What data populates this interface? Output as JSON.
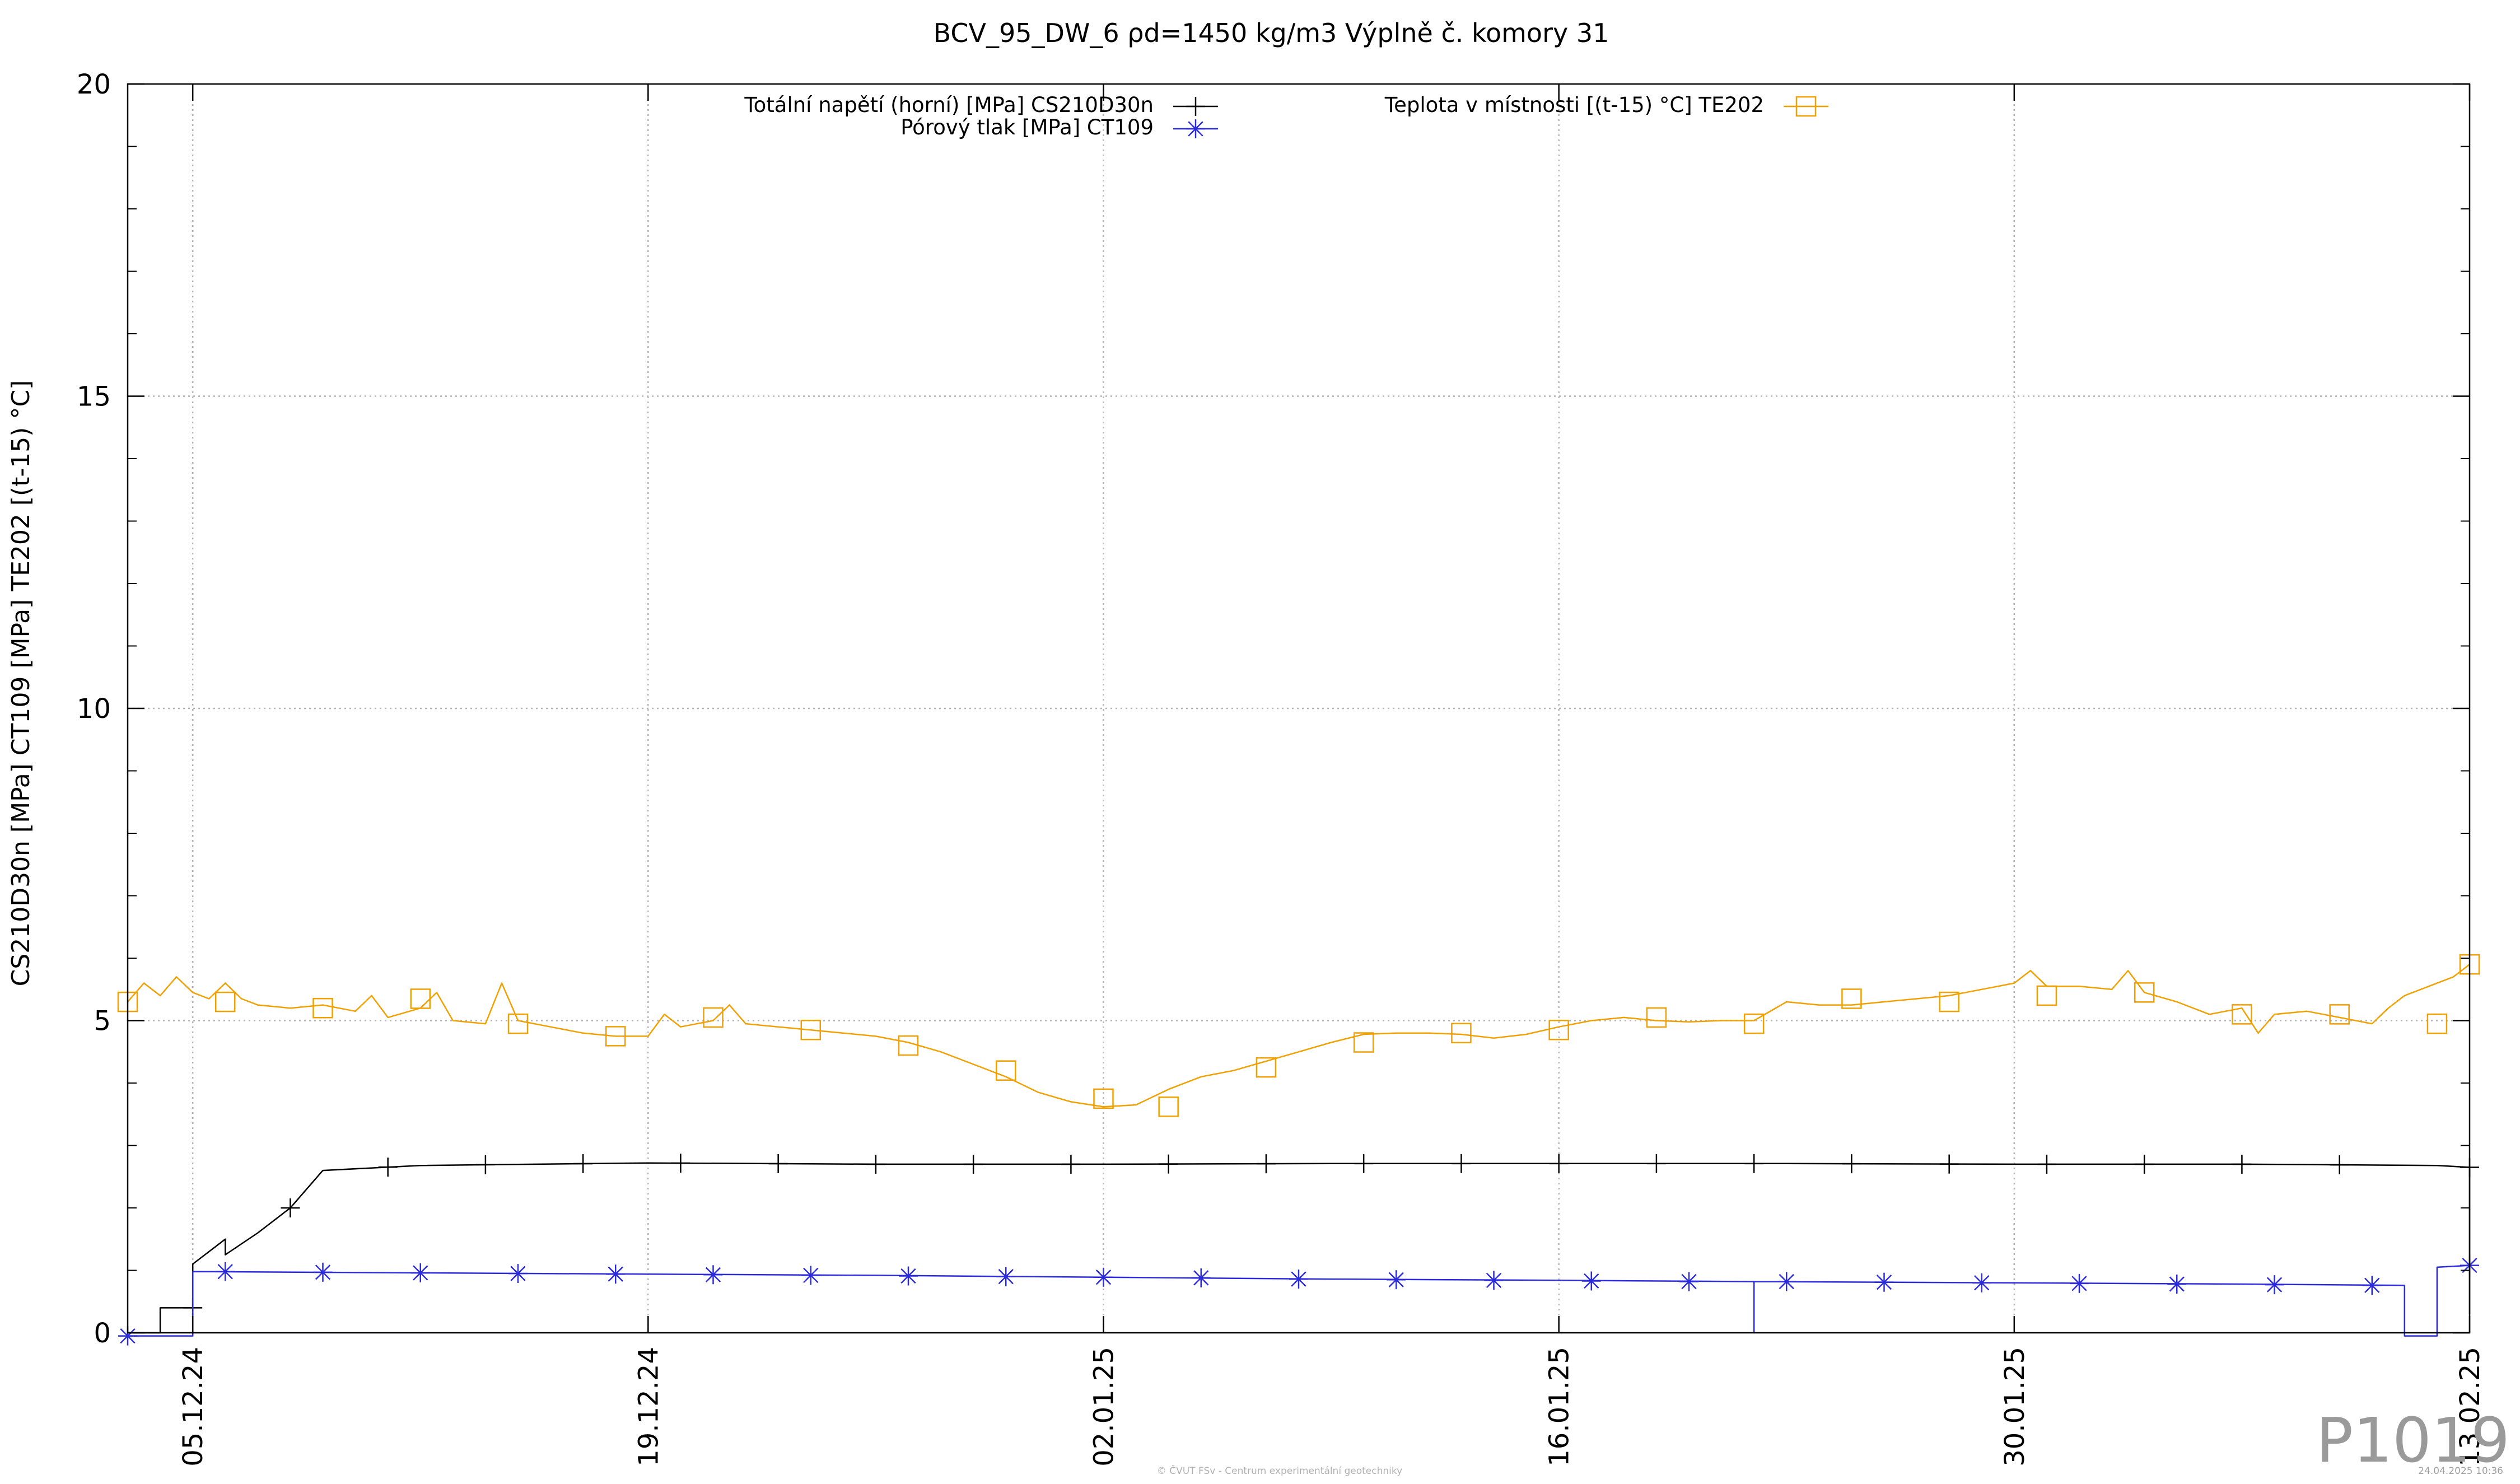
{
  "chart_data": {
    "type": "line",
    "title": "BCV_95_DW_6 ρd=1450 kg/m3 Výplně č. komory 31",
    "ylabel": "CS210D30n [MPa] CT109 [MPa] TE202 [(t-15) °C]",
    "xlabel": "",
    "ylim": [
      0,
      20
    ],
    "yticks": [
      "0",
      "5",
      "10",
      "15",
      "20"
    ],
    "xlim": [
      "2024-12-03",
      "2025-02-13"
    ],
    "xticks": [
      {
        "date": "2024-12-05",
        "label": "05.12.24"
      },
      {
        "date": "2024-12-19",
        "label": "19.12.24"
      },
      {
        "date": "2025-01-02",
        "label": "02.01.25"
      },
      {
        "date": "2025-01-16",
        "label": "16.01.25"
      },
      {
        "date": "2025-01-30",
        "label": "30.01.25"
      },
      {
        "date": "2025-02-13",
        "label": "13.02.25"
      }
    ],
    "grid": true,
    "legend_position": "top",
    "series": [
      {
        "name": "Totální napětí (horní) [MPa] CS210D30n",
        "color": "#000000",
        "marker": "plus",
        "points": [
          [
            "2024-12-03",
            0.0
          ],
          [
            "2024-12-04",
            0.0
          ],
          [
            "2024-12-04",
            0.4
          ],
          [
            "2024-12-05",
            0.4
          ],
          [
            "2024-12-05",
            1.1
          ],
          [
            "2024-12-06",
            1.5
          ],
          [
            "2024-12-06",
            1.25
          ],
          [
            "2024-12-07",
            1.6
          ],
          [
            "2024-12-08",
            2.0
          ],
          [
            "2024-12-09",
            2.6
          ],
          [
            "2024-12-12",
            2.68
          ],
          [
            "2024-12-19",
            2.72
          ],
          [
            "2024-12-26",
            2.7
          ],
          [
            "2025-01-02",
            2.7
          ],
          [
            "2025-01-09",
            2.71
          ],
          [
            "2025-01-16",
            2.71
          ],
          [
            "2025-01-23",
            2.71
          ],
          [
            "2025-01-30",
            2.7
          ],
          [
            "2025-02-06",
            2.7
          ],
          [
            "2025-02-12",
            2.68
          ],
          [
            "2025-02-13",
            2.65
          ],
          [
            "2025-02-13",
            0.3
          ]
        ],
        "markers": [
          "2024-12-05",
          "2024-12-08",
          "2024-12-11",
          "2024-12-14",
          "2024-12-17",
          "2024-12-20",
          "2024-12-23",
          "2024-12-26",
          "2024-12-29",
          "2025-01-01",
          "2025-01-04",
          "2025-01-07",
          "2025-01-10",
          "2025-01-13",
          "2025-01-16",
          "2025-01-19",
          "2025-01-22",
          "2025-01-25",
          "2025-01-28",
          "2025-01-31",
          "2025-02-03",
          "2025-02-06",
          "2025-02-09",
          "2025-02-13"
        ]
      },
      {
        "name": "Pórový tlak [MPa] CT109",
        "color": "#2b2bdc",
        "marker": "star",
        "points": [
          [
            "2024-12-03",
            -0.05
          ],
          [
            "2024-12-05",
            -0.05
          ],
          [
            "2024-12-05",
            0.98
          ],
          [
            "2024-12-12",
            0.96
          ],
          [
            "2024-12-19",
            0.94
          ],
          [
            "2024-12-26",
            0.92
          ],
          [
            "2025-01-02",
            0.89
          ],
          [
            "2025-01-09",
            0.86
          ],
          [
            "2025-01-16",
            0.84
          ],
          [
            "2025-01-22",
            0.82
          ],
          [
            "2025-01-22",
            0.0
          ],
          [
            "2025-01-22",
            0.82
          ],
          [
            "2025-01-30",
            0.8
          ],
          [
            "2025-02-06",
            0.78
          ],
          [
            "2025-02-11",
            0.76
          ],
          [
            "2025-02-11",
            -0.05
          ],
          [
            "2025-02-12",
            -0.05
          ],
          [
            "2025-02-12",
            1.05
          ],
          [
            "2025-02-13",
            1.08
          ]
        ],
        "markers": [
          [
            "2024-12-03",
            -0.05
          ],
          [
            "2024-12-06",
            0.98
          ],
          [
            "2024-12-09",
            0.97
          ],
          [
            "2024-12-12",
            0.96
          ],
          [
            "2024-12-15",
            0.95
          ],
          [
            "2024-12-18",
            0.94
          ],
          [
            "2024-12-21",
            0.93
          ],
          [
            "2024-12-24",
            0.92
          ],
          [
            "2024-12-27",
            0.91
          ],
          [
            "2024-12-30",
            0.9
          ],
          [
            "2025-01-02",
            0.89
          ],
          [
            "2025-01-05",
            0.88
          ],
          [
            "2025-01-08",
            0.86
          ],
          [
            "2025-01-11",
            0.85
          ],
          [
            "2025-01-14",
            0.84
          ],
          [
            "2025-01-17",
            0.83
          ],
          [
            "2025-01-20",
            0.82
          ],
          [
            "2025-01-23",
            0.82
          ],
          [
            "2025-01-26",
            0.81
          ],
          [
            "2025-01-29",
            0.8
          ],
          [
            "2025-02-01",
            0.79
          ],
          [
            "2025-02-04",
            0.78
          ],
          [
            "2025-02-07",
            0.77
          ],
          [
            "2025-02-10",
            0.76
          ],
          [
            "2025-02-13",
            1.08
          ]
        ]
      },
      {
        "name": "Teplota v místnosti [(t-15) °C] TE202",
        "color": "#f0a000",
        "marker": "square",
        "points": [
          [
            "2024-12-03",
            5.3
          ],
          [
            "2024-12-03.5",
            5.6
          ],
          [
            "2024-12-04",
            5.4
          ],
          [
            "2024-12-04.5",
            5.7
          ],
          [
            "2024-12-05",
            5.45
          ],
          [
            "2024-12-05.5",
            5.35
          ],
          [
            "2024-12-06",
            5.6
          ],
          [
            "2024-12-06.5",
            5.35
          ],
          [
            "2024-12-07",
            5.25
          ],
          [
            "2024-12-08",
            5.2
          ],
          [
            "2024-12-09",
            5.25
          ],
          [
            "2024-12-10",
            5.15
          ],
          [
            "2024-12-10.5",
            5.4
          ],
          [
            "2024-12-11",
            5.05
          ],
          [
            "2024-12-12",
            5.2
          ],
          [
            "2024-12-12.5",
            5.45
          ],
          [
            "2024-12-13",
            5.0
          ],
          [
            "2024-12-14",
            4.95
          ],
          [
            "2024-12-14.5",
            5.6
          ],
          [
            "2024-12-15",
            5.0
          ],
          [
            "2024-12-16",
            4.9
          ],
          [
            "2024-12-17",
            4.8
          ],
          [
            "2024-12-18",
            4.75
          ],
          [
            "2024-12-19",
            4.75
          ],
          [
            "2024-12-19.5",
            5.1
          ],
          [
            "2024-12-20",
            4.9
          ],
          [
            "2024-12-21",
            5.0
          ],
          [
            "2024-12-21.5",
            5.25
          ],
          [
            "2024-12-22",
            4.95
          ],
          [
            "2024-12-23",
            4.9
          ],
          [
            "2024-12-24",
            4.85
          ],
          [
            "2024-12-26",
            4.75
          ],
          [
            "2024-12-27",
            4.65
          ],
          [
            "2024-12-28",
            4.5
          ],
          [
            "2024-12-29",
            4.3
          ],
          [
            "2024-12-30",
            4.1
          ],
          [
            "2024-12-31",
            3.85
          ],
          [
            "2025-01-01",
            3.7
          ],
          [
            "2025-01-02",
            3.62
          ],
          [
            "2025-01-03",
            3.65
          ],
          [
            "2025-01-04",
            3.9
          ],
          [
            "2025-01-05",
            4.1
          ],
          [
            "2025-01-06",
            4.2
          ],
          [
            "2025-01-07",
            4.35
          ],
          [
            "2025-01-08",
            4.5
          ],
          [
            "2025-01-09",
            4.65
          ],
          [
            "2025-01-10",
            4.78
          ],
          [
            "2025-01-11",
            4.8
          ],
          [
            "2025-01-12",
            4.8
          ],
          [
            "2025-01-13",
            4.78
          ],
          [
            "2025-01-14",
            4.72
          ],
          [
            "2025-01-15",
            4.78
          ],
          [
            "2025-01-16",
            4.9
          ],
          [
            "2025-01-17",
            5.0
          ],
          [
            "2025-01-18",
            5.05
          ],
          [
            "2025-01-19",
            5.0
          ],
          [
            "2025-01-20",
            4.98
          ],
          [
            "2025-01-21",
            5.0
          ],
          [
            "2025-01-22",
            5.0
          ],
          [
            "2025-01-23",
            5.3
          ],
          [
            "2025-01-24",
            5.25
          ],
          [
            "2025-01-25",
            5.25
          ],
          [
            "2025-01-26",
            5.3
          ],
          [
            "2025-01-27",
            5.35
          ],
          [
            "2025-01-28",
            5.4
          ],
          [
            "2025-01-29",
            5.5
          ],
          [
            "2025-01-30",
            5.6
          ],
          [
            "2025-01-30.5",
            5.8
          ],
          [
            "2025-01-31",
            5.55
          ],
          [
            "2025-02-01",
            5.55
          ],
          [
            "2025-02-02",
            5.5
          ],
          [
            "2025-02-02.5",
            5.8
          ],
          [
            "2025-02-03",
            5.45
          ],
          [
            "2025-02-04",
            5.3
          ],
          [
            "2025-02-05",
            5.1
          ],
          [
            "2025-02-06",
            5.2
          ],
          [
            "2025-02-06.5",
            4.8
          ],
          [
            "2025-02-07",
            5.1
          ],
          [
            "2025-02-08",
            5.15
          ],
          [
            "2025-02-09",
            5.05
          ],
          [
            "2025-02-10",
            4.95
          ],
          [
            "2025-02-10.5",
            5.2
          ],
          [
            "2025-02-11",
            5.4
          ],
          [
            "2025-02-12",
            5.6
          ],
          [
            "2025-02-12.5",
            5.7
          ],
          [
            "2025-02-13",
            5.9
          ]
        ],
        "markers": [
          [
            "2024-12-03",
            5.3
          ],
          [
            "2024-12-06",
            5.3
          ],
          [
            "2024-12-09",
            5.2
          ],
          [
            "2024-12-12",
            5.35
          ],
          [
            "2024-12-15",
            4.95
          ],
          [
            "2024-12-18",
            4.75
          ],
          [
            "2024-12-21",
            5.05
          ],
          [
            "2024-12-24",
            4.85
          ],
          [
            "2024-12-27",
            4.6
          ],
          [
            "2024-12-30",
            4.2
          ],
          [
            "2025-01-02",
            3.75
          ],
          [
            "2025-01-04",
            3.62
          ],
          [
            "2025-01-07",
            4.25
          ],
          [
            "2025-01-10",
            4.65
          ],
          [
            "2025-01-13",
            4.8
          ],
          [
            "2025-01-16",
            4.85
          ],
          [
            "2025-01-19",
            5.05
          ],
          [
            "2025-01-22",
            4.95
          ],
          [
            "2025-01-25",
            5.35
          ],
          [
            "2025-01-28",
            5.3
          ],
          [
            "2025-01-31",
            5.4
          ],
          [
            "2025-02-03",
            5.45
          ],
          [
            "2025-02-06",
            5.1
          ],
          [
            "2025-02-09",
            5.1
          ],
          [
            "2025-02-12",
            4.95
          ],
          [
            "2025-02-13",
            5.9
          ]
        ]
      }
    ]
  },
  "watermark": "P1019",
  "footer_center": "© ČVUT FSv - Centrum experimentální geotechniky",
  "footer_right": "24.04.2025 10:36"
}
